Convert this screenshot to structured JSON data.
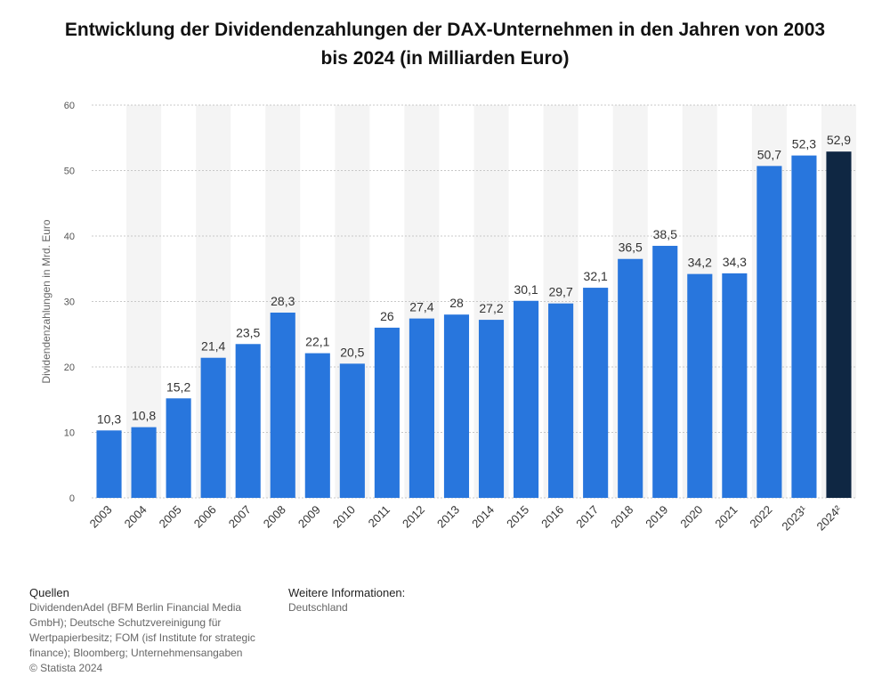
{
  "title": "Entwicklung der Dividendenzahlungen der DAX-Unternehmen in den Jahren von 2003 bis 2024 (in Milliarden Euro)",
  "chart_data": {
    "type": "bar",
    "title": "Entwicklung der Dividendenzahlungen der DAX-Unternehmen in den Jahren von 2003 bis 2024 (in Milliarden Euro)",
    "xlabel": "",
    "ylabel": "Dividendenzahlungen in Mrd. Euro",
    "ylim": [
      0,
      60
    ],
    "yticks": [
      "0",
      "10",
      "20",
      "30",
      "40",
      "50",
      "60"
    ],
    "grid": true,
    "categories": [
      "2003",
      "2004",
      "2005",
      "2006",
      "2007",
      "2008",
      "2009",
      "2010",
      "2011",
      "2012",
      "2013",
      "2014",
      "2015",
      "2016",
      "2017",
      "2018",
      "2019",
      "2020",
      "2021",
      "2022",
      "2023¹",
      "2024²"
    ],
    "values": [
      10.3,
      10.8,
      15.2,
      21.4,
      23.5,
      28.3,
      22.1,
      20.5,
      26,
      27.4,
      28,
      27.2,
      30.1,
      29.7,
      32.1,
      36.5,
      38.5,
      34.2,
      34.3,
      50.7,
      52.3,
      52.9
    ],
    "value_labels": [
      "10,3",
      "10,8",
      "15,2",
      "21,4",
      "23,5",
      "28,3",
      "22,1",
      "20,5",
      "26",
      "27,4",
      "28",
      "27,2",
      "30,1",
      "29,7",
      "32,1",
      "36,5",
      "38,5",
      "34,2",
      "34,3",
      "50,7",
      "52,3",
      "52,9"
    ],
    "colors": {
      "bar": "#2876dd",
      "highlight_bar": "#0f2743",
      "highlight_index": 21,
      "band": "#f4f4f4",
      "grid": "#c8c8c8"
    }
  },
  "footer": {
    "sources_heading": "Quellen",
    "sources_text": "DividendenAdel (BFM Berlin Financial Media GmbH); Deutsche Schutzvereinigung für Wertpapierbesitz; FOM (isf Institute for strategic finance); Bloomberg; Unternehmensangaben",
    "copyright": "© Statista 2024",
    "info_heading": "Weitere Informationen:",
    "info_text": "Deutschland"
  }
}
